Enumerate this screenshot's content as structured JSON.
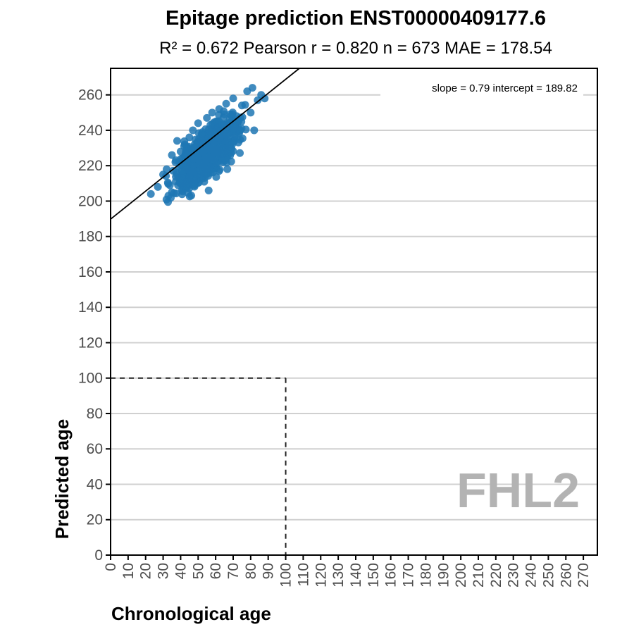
{
  "chart_data": {
    "type": "scatter",
    "title": "Epitage prediction ENST00000409177.6",
    "subtitle": "R² = 0.672   Pearson r = 0.820   n = 673   MAE = 178.54",
    "xlabel": "Chronological age",
    "ylabel": "Predicted age",
    "xlim": [
      0,
      278
    ],
    "ylim": [
      0,
      275
    ],
    "x_ticks": [
      0,
      10,
      20,
      30,
      40,
      50,
      60,
      70,
      80,
      90,
      100,
      110,
      120,
      130,
      140,
      150,
      160,
      170,
      180,
      190,
      200,
      210,
      220,
      230,
      240,
      250,
      260,
      270
    ],
    "y_ticks": [
      0,
      20,
      40,
      60,
      80,
      100,
      120,
      140,
      160,
      180,
      200,
      220,
      240,
      260
    ],
    "grid": "horizontal",
    "point_color": "#1f77b4",
    "fit": {
      "slope": 0.79,
      "intercept": 189.82,
      "label": "slope = 0.79   intercept = 189.82",
      "color": "#000000"
    },
    "reference_box": {
      "x": 100,
      "y": 100,
      "style": "dashed"
    },
    "gene_label": "FHL2",
    "n_points": 673,
    "x_range_points": [
      22,
      88
    ],
    "y_center_model": {
      "slope": 0.79,
      "intercept": 189.82,
      "spread": 7
    },
    "sample_points": [
      [
        23,
        204
      ],
      [
        27,
        208
      ],
      [
        30,
        215
      ],
      [
        32,
        218
      ],
      [
        33,
        203
      ],
      [
        35,
        205
      ],
      [
        35,
        226
      ],
      [
        37,
        222
      ],
      [
        38,
        234
      ],
      [
        40,
        228
      ],
      [
        42,
        231
      ],
      [
        44,
        226
      ],
      [
        45,
        236
      ],
      [
        47,
        240
      ],
      [
        48,
        232
      ],
      [
        50,
        244
      ],
      [
        52,
        238
      ],
      [
        53,
        228
      ],
      [
        55,
        247
      ],
      [
        56,
        206
      ],
      [
        57,
        243
      ],
      [
        58,
        250
      ],
      [
        60,
        236
      ],
      [
        61,
        245
      ],
      [
        62,
        252
      ],
      [
        64,
        243
      ],
      [
        65,
        249
      ],
      [
        66,
        255
      ],
      [
        68,
        246
      ],
      [
        70,
        258
      ],
      [
        72,
        248
      ],
      [
        74,
        240
      ],
      [
        75,
        254
      ],
      [
        78,
        262
      ],
      [
        80,
        250
      ],
      [
        82,
        240
      ],
      [
        84,
        257
      ],
      [
        86,
        260
      ],
      [
        88,
        258
      ],
      [
        81,
        264
      ]
    ]
  }
}
